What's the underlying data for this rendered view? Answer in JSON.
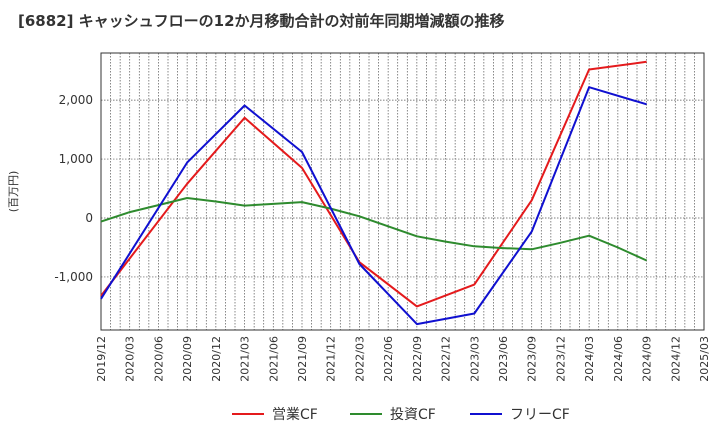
{
  "title": "[6882]  キャッシュフローの12か月移動合計の対前年同期増減額の推移",
  "chart_data": {
    "type": "line",
    "title": "[6882]  キャッシュフローの12か月移動合計の対前年同期増減額の推移",
    "ylabel": "(百万円)",
    "xlabel": "",
    "categories": [
      "2019/12",
      "2020/03",
      "2020/06",
      "2020/09",
      "2020/12",
      "2021/03",
      "2021/06",
      "2021/09",
      "2021/12",
      "2022/03",
      "2022/06",
      "2022/09",
      "2022/12",
      "2023/03",
      "2023/06",
      "2023/09",
      "2023/12",
      "2024/03",
      "2024/06",
      "2024/09",
      "2024/12",
      "2025/03"
    ],
    "ylim": [
      -1900,
      2800
    ],
    "yticks": [
      2000,
      1000,
      0,
      -1000
    ],
    "ytick_labels": [
      "2,000",
      "1,000",
      "0",
      "-1,000"
    ],
    "grid": true,
    "legend_position": "bottom",
    "series": [
      {
        "name": "営業CF",
        "color": "#e41a1c",
        "values": [
          -1320,
          null,
          null,
          580,
          null,
          1700,
          null,
          850,
          null,
          -750,
          null,
          -1500,
          null,
          -1130,
          null,
          300,
          null,
          2520,
          null,
          2650,
          null,
          null
        ]
      },
      {
        "name": "投資CF",
        "color": "#2e8b2e",
        "values": [
          -60,
          100,
          220,
          340,
          280,
          210,
          240,
          270,
          160,
          30,
          -140,
          -310,
          -400,
          -480,
          -510,
          -530,
          -420,
          -300,
          -500,
          -720,
          null,
          null
        ]
      },
      {
        "name": "フリーCF",
        "color": "#1010d0",
        "values": [
          -1370,
          null,
          null,
          940,
          null,
          1910,
          null,
          1120,
          null,
          -780,
          null,
          -1800,
          null,
          -1620,
          null,
          -230,
          null,
          2220,
          null,
          1930,
          null,
          null
        ]
      }
    ]
  }
}
